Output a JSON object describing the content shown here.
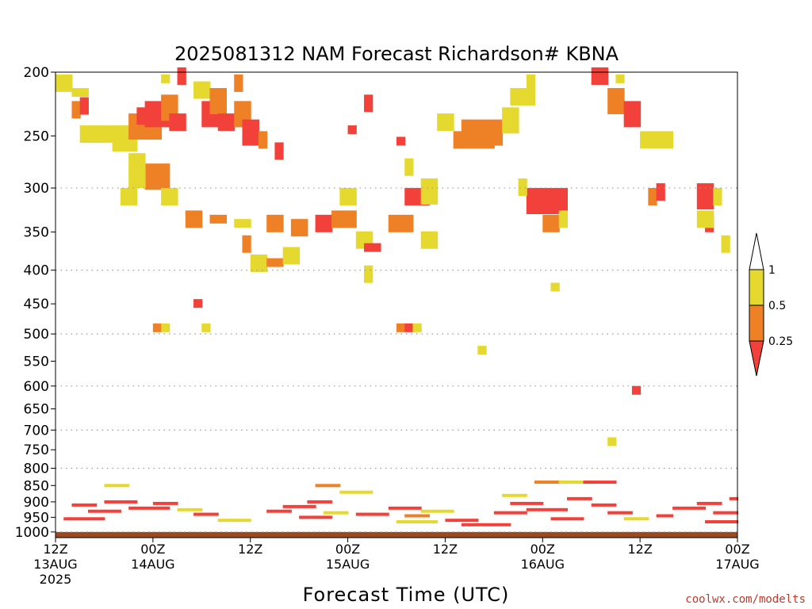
{
  "chart_data": {
    "type": "heatmap",
    "title": "2025081312 NAM Forecast Richardson# KBNA",
    "xlabel": "Forecast Time (UTC)",
    "ylabel": "",
    "y_scale": "log-pressure",
    "y_ticks": [
      200,
      250,
      300,
      350,
      400,
      450,
      500,
      550,
      600,
      650,
      700,
      750,
      800,
      850,
      900,
      950,
      1000
    ],
    "y_range": [
      200,
      1020
    ],
    "grid_levels": [
      300,
      400,
      500,
      600,
      700,
      800,
      1000
    ],
    "x_ticks": [
      {
        "hour": 0,
        "line1": "12Z",
        "line2": "13AUG",
        "line3": "2025"
      },
      {
        "hour": 12,
        "line1": "00Z",
        "line2": "14AUG",
        "line3": ""
      },
      {
        "hour": 24,
        "line1": "12Z",
        "line2": "",
        "line3": ""
      },
      {
        "hour": 36,
        "line1": "00Z",
        "line2": "15AUG",
        "line3": ""
      },
      {
        "hour": 48,
        "line1": "12Z",
        "line2": "",
        "line3": ""
      },
      {
        "hour": 60,
        "line1": "00Z",
        "line2": "16AUG",
        "line3": ""
      },
      {
        "hour": 72,
        "line1": "12Z",
        "line2": "",
        "line3": ""
      },
      {
        "hour": 84,
        "line1": "00Z",
        "line2": "17AUG",
        "line3": ""
      }
    ],
    "x_range": [
      0,
      84
    ],
    "legend": {
      "placement": "right",
      "levels": [
        "1",
        "0.5",
        "0.25"
      ],
      "bins": [
        {
          "range": "0.5-1",
          "color": "#e5d930"
        },
        {
          "range": "0.25-0.5",
          "color": "#ee8026"
        },
        {
          "range": "<0.25",
          "color": "#f2413a"
        }
      ]
    },
    "colors": {
      "yellow": "#e5d930",
      "orange": "#ee8026",
      "red": "#f2413a",
      "ground": "#9b4a20"
    },
    "cells": [
      [
        0,
        205,
        2,
        2,
        "y"
      ],
      [
        2,
        215,
        2,
        1,
        "y"
      ],
      [
        2,
        225,
        1,
        2,
        "o"
      ],
      [
        3,
        222,
        1,
        2,
        "r"
      ],
      [
        3,
        245,
        4,
        2,
        "y"
      ],
      [
        7,
        245,
        3,
        3,
        "y"
      ],
      [
        9,
        235,
        4,
        3,
        "o"
      ],
      [
        10,
        230,
        2,
        2,
        "r"
      ],
      [
        11,
        225,
        3,
        3,
        "r"
      ],
      [
        13,
        220,
        2,
        3,
        "o"
      ],
      [
        14,
        235,
        2,
        2,
        "r"
      ],
      [
        13,
        205,
        1,
        1,
        "y"
      ],
      [
        15,
        200,
        1,
        2,
        "r"
      ],
      [
        17,
        210,
        2,
        2,
        "y"
      ],
      [
        18,
        225,
        2,
        3,
        "r"
      ],
      [
        19,
        215,
        2,
        3,
        "o"
      ],
      [
        20,
        235,
        2,
        2,
        "r"
      ],
      [
        22,
        205,
        1,
        2,
        "o"
      ],
      [
        22,
        225,
        2,
        3,
        "o"
      ],
      [
        23,
        240,
        2,
        3,
        "r"
      ],
      [
        25,
        250,
        1,
        2,
        "o"
      ],
      [
        27,
        260,
        1,
        2,
        "r"
      ],
      [
        11,
        280,
        3,
        3,
        "o"
      ],
      [
        9,
        270,
        2,
        4,
        "y"
      ],
      [
        8,
        305,
        2,
        2,
        "y"
      ],
      [
        13,
        305,
        2,
        2,
        "y"
      ],
      [
        16,
        330,
        2,
        2,
        "o"
      ],
      [
        19,
        335,
        2,
        1,
        "o"
      ],
      [
        22,
        340,
        2,
        1,
        "y"
      ],
      [
        26,
        335,
        2,
        2,
        "o"
      ],
      [
        29,
        340,
        2,
        2,
        "o"
      ],
      [
        32,
        335,
        2,
        2,
        "r"
      ],
      [
        34,
        330,
        3,
        2,
        "o"
      ],
      [
        35,
        305,
        2,
        2,
        "y"
      ],
      [
        36,
        245,
        1,
        1,
        "r"
      ],
      [
        38,
        220,
        1,
        2,
        "r"
      ],
      [
        37,
        355,
        2,
        2,
        "y"
      ],
      [
        38,
        370,
        2,
        1,
        "r"
      ],
      [
        38,
        400,
        1,
        2,
        "y"
      ],
      [
        41,
        335,
        3,
        2,
        "o"
      ],
      [
        43,
        305,
        3,
        2,
        "r"
      ],
      [
        45,
        295,
        2,
        3,
        "y"
      ],
      [
        42,
        255,
        1,
        1,
        "r"
      ],
      [
        43,
        275,
        1,
        2,
        "y"
      ],
      [
        45,
        355,
        2,
        2,
        "y"
      ],
      [
        42,
        490,
        1,
        1,
        "o"
      ],
      [
        43,
        490,
        1,
        1,
        "r"
      ],
      [
        44,
        490,
        1,
        1,
        "y"
      ],
      [
        50,
        240,
        5,
        3,
        "o"
      ],
      [
        49,
        250,
        5,
        2,
        "o"
      ],
      [
        47,
        235,
        2,
        2,
        "y"
      ],
      [
        55,
        230,
        2,
        3,
        "y"
      ],
      [
        56,
        215,
        3,
        2,
        "y"
      ],
      [
        58,
        205,
        1,
        2,
        "y"
      ],
      [
        58,
        305,
        5,
        3,
        "r"
      ],
      [
        57,
        295,
        1,
        2,
        "y"
      ],
      [
        60,
        335,
        2,
        2,
        "o"
      ],
      [
        62,
        330,
        1,
        2,
        "y"
      ],
      [
        61,
        425,
        1,
        1,
        "y"
      ],
      [
        52,
        530,
        1,
        1,
        "y"
      ],
      [
        66,
        200,
        2,
        2,
        "r"
      ],
      [
        68,
        215,
        2,
        3,
        "o"
      ],
      [
        69,
        205,
        1,
        1,
        "y"
      ],
      [
        70,
        225,
        2,
        3,
        "r"
      ],
      [
        72,
        250,
        4,
        2,
        "y"
      ],
      [
        73,
        305,
        1,
        2,
        "o"
      ],
      [
        74,
        300,
        1,
        2,
        "r"
      ],
      [
        79,
        300,
        2,
        3,
        "r"
      ],
      [
        80,
        335,
        1,
        2,
        "r"
      ],
      [
        79,
        330,
        2,
        2,
        "y"
      ],
      [
        81,
        305,
        1,
        2,
        "y"
      ],
      [
        82,
        360,
        1,
        2,
        "y"
      ],
      [
        71,
        610,
        1,
        1,
        "r"
      ],
      [
        68,
        730,
        1,
        1,
        "y"
      ],
      [
        17,
        450,
        1,
        1,
        "r"
      ],
      [
        12,
        490,
        1,
        1,
        "o"
      ],
      [
        13,
        490,
        1,
        1,
        "y"
      ],
      [
        18,
        490,
        1,
        1,
        "y"
      ],
      [
        24,
        385,
        2,
        2,
        "y"
      ],
      [
        26,
        390,
        2,
        1,
        "o"
      ],
      [
        23,
        360,
        1,
        2,
        "o"
      ],
      [
        28,
        375,
        2,
        2,
        "y"
      ]
    ],
    "low_cells": [
      [
        2,
        910,
        3,
        1,
        "r"
      ],
      [
        4,
        930,
        4,
        1,
        "r"
      ],
      [
        6,
        900,
        4,
        1,
        "r"
      ],
      [
        9,
        920,
        5,
        1,
        "r"
      ],
      [
        12,
        905,
        3,
        1,
        "r"
      ],
      [
        15,
        925,
        3,
        1,
        "y"
      ],
      [
        17,
        940,
        3,
        1,
        "r"
      ],
      [
        20,
        960,
        4,
        1,
        "y"
      ],
      [
        6,
        850,
        3,
        1,
        "y"
      ],
      [
        1,
        955,
        5,
        1,
        "r"
      ],
      [
        26,
        930,
        3,
        1,
        "r"
      ],
      [
        28,
        915,
        4,
        1,
        "r"
      ],
      [
        30,
        950,
        4,
        1,
        "r"
      ],
      [
        31,
        900,
        3,
        1,
        "r"
      ],
      [
        33,
        935,
        3,
        1,
        "y"
      ],
      [
        32,
        850,
        3,
        1,
        "o"
      ],
      [
        35,
        870,
        4,
        1,
        "y"
      ],
      [
        37,
        940,
        4,
        1,
        "r"
      ],
      [
        41,
        920,
        4,
        1,
        "r"
      ],
      [
        43,
        945,
        3,
        1,
        "o"
      ],
      [
        42,
        965,
        5,
        1,
        "y"
      ],
      [
        45,
        930,
        4,
        1,
        "y"
      ],
      [
        48,
        960,
        4,
        1,
        "r"
      ],
      [
        50,
        975,
        6,
        1,
        "r"
      ],
      [
        54,
        935,
        4,
        1,
        "r"
      ],
      [
        55,
        880,
        3,
        1,
        "y"
      ],
      [
        56,
        905,
        4,
        1,
        "r"
      ],
      [
        58,
        925,
        5,
        1,
        "r"
      ],
      [
        59,
        840,
        4,
        1,
        "o"
      ],
      [
        62,
        840,
        4,
        1,
        "y"
      ],
      [
        65,
        840,
        4,
        1,
        "r"
      ],
      [
        61,
        955,
        4,
        1,
        "r"
      ],
      [
        63,
        890,
        3,
        1,
        "r"
      ],
      [
        66,
        910,
        3,
        1,
        "r"
      ],
      [
        68,
        935,
        3,
        1,
        "r"
      ],
      [
        70,
        955,
        3,
        1,
        "y"
      ],
      [
        76,
        920,
        4,
        1,
        "r"
      ],
      [
        79,
        905,
        3,
        1,
        "r"
      ],
      [
        81,
        935,
        3,
        1,
        "r"
      ],
      [
        80,
        965,
        4,
        1,
        "r"
      ],
      [
        74,
        945,
        2,
        1,
        "r"
      ],
      [
        83,
        890,
        1,
        1,
        "r"
      ]
    ]
  },
  "credit": "coolwx.com/modelts"
}
